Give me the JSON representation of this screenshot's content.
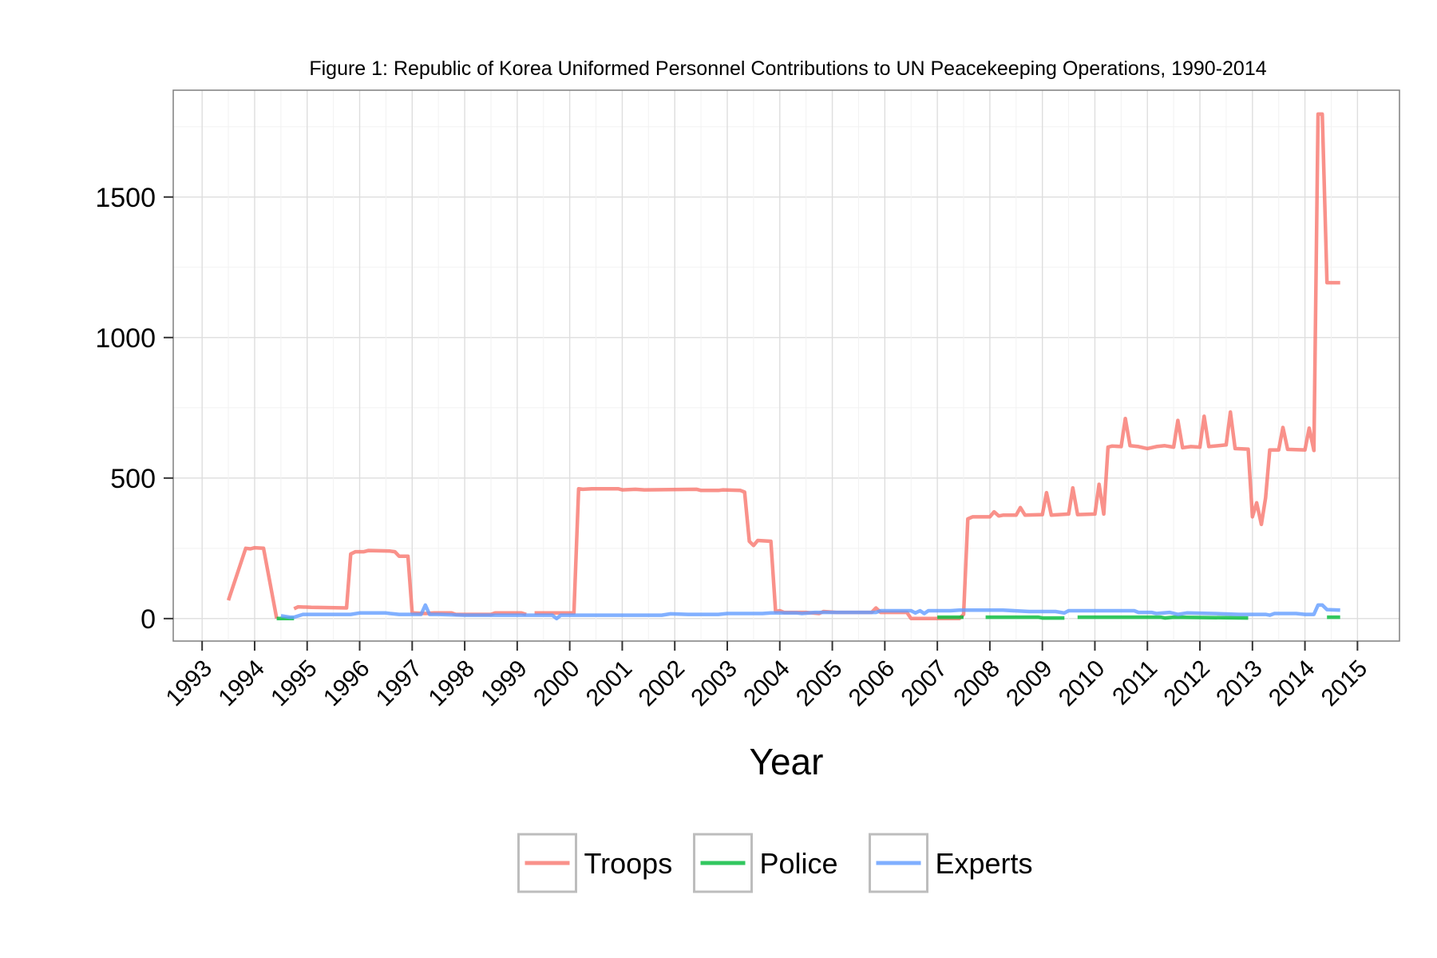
{
  "chart_data": {
    "type": "line",
    "title": "Figure 1: Republic of Korea Uniformed Personnel Contributions to UN Peacekeeping Operations, 1990-2014",
    "xlabel": "Year",
    "ylabel": "",
    "xlim": [
      1992.45,
      2015.8
    ],
    "ylim": [
      -80,
      1880
    ],
    "x_ticks": [
      "1993",
      "1994",
      "1995",
      "1996",
      "1997",
      "1998",
      "1999",
      "2000",
      "2001",
      "2002",
      "2003",
      "2004",
      "2005",
      "2006",
      "2007",
      "2008",
      "2009",
      "2010",
      "2011",
      "2012",
      "2013",
      "2014",
      "2015"
    ],
    "y_ticks": [
      0,
      500,
      1000,
      1500
    ],
    "grid": true,
    "legend_position": "bottom",
    "series": [
      {
        "name": "Troops",
        "color": "#F8766D",
        "points": [
          [
            1993.5,
            65
          ],
          [
            1993.83,
            250
          ],
          [
            1993.92,
            248
          ],
          [
            1994.0,
            252
          ],
          [
            1994.17,
            250
          ],
          [
            1994.42,
            0
          ],
          null,
          [
            1994.75,
            35
          ],
          [
            1994.83,
            42
          ],
          [
            1995.08,
            40
          ],
          [
            1995.75,
            38
          ],
          [
            1995.83,
            230
          ],
          [
            1995.92,
            238
          ],
          [
            1996.08,
            238
          ],
          [
            1996.17,
            242
          ],
          [
            1996.58,
            240
          ],
          [
            1996.67,
            238
          ],
          [
            1996.75,
            222
          ],
          [
            1996.92,
            222
          ],
          [
            1997.0,
            20
          ],
          [
            1997.25,
            18
          ],
          [
            1997.42,
            20
          ],
          [
            1997.75,
            20
          ],
          [
            1997.83,
            15
          ],
          [
            1998.5,
            15
          ],
          [
            1998.58,
            20
          ],
          [
            1999.08,
            20
          ],
          [
            1999.17,
            15
          ],
          null,
          [
            1999.33,
            20
          ],
          [
            2000.08,
            20
          ],
          [
            2000.17,
            462
          ],
          [
            2000.25,
            460
          ],
          [
            2000.42,
            462
          ],
          [
            2000.92,
            462
          ],
          [
            2001.0,
            458
          ],
          [
            2001.25,
            460
          ],
          [
            2001.42,
            458
          ],
          [
            2002.42,
            460
          ],
          [
            2002.5,
            456
          ],
          [
            2002.83,
            456
          ],
          [
            2002.92,
            458
          ],
          [
            2003.25,
            456
          ],
          [
            2003.33,
            450
          ],
          [
            2003.42,
            275
          ],
          [
            2003.5,
            260
          ],
          [
            2003.58,
            278
          ],
          [
            2003.83,
            275
          ],
          [
            2003.92,
            25
          ],
          [
            2004.0,
            28
          ],
          [
            2004.08,
            22
          ],
          [
            2004.5,
            22
          ],
          [
            2004.75,
            18
          ],
          [
            2004.83,
            25
          ],
          [
            2005.08,
            22
          ],
          [
            2005.75,
            22
          ],
          [
            2005.83,
            38
          ],
          [
            2005.92,
            22
          ],
          [
            2006.42,
            22
          ],
          [
            2006.5,
            0
          ],
          [
            2007.42,
            0
          ],
          [
            2007.5,
            15
          ],
          [
            2007.58,
            355
          ],
          [
            2007.67,
            362
          ],
          [
            2008.0,
            362
          ],
          [
            2008.08,
            380
          ],
          [
            2008.17,
            365
          ],
          [
            2008.25,
            368
          ],
          [
            2008.5,
            368
          ],
          [
            2008.58,
            395
          ],
          [
            2008.67,
            368
          ],
          [
            2009.0,
            370
          ],
          [
            2009.08,
            448
          ],
          [
            2009.17,
            368
          ],
          [
            2009.5,
            372
          ],
          [
            2009.58,
            465
          ],
          [
            2009.67,
            370
          ],
          [
            2010.0,
            372
          ],
          [
            2010.08,
            478
          ],
          [
            2010.17,
            372
          ],
          [
            2010.25,
            610
          ],
          [
            2010.33,
            614
          ],
          [
            2010.5,
            612
          ],
          [
            2010.58,
            712
          ],
          [
            2010.67,
            615
          ],
          [
            2010.83,
            612
          ],
          [
            2011.0,
            605
          ],
          [
            2011.17,
            612
          ],
          [
            2011.33,
            615
          ],
          [
            2011.5,
            610
          ],
          [
            2011.58,
            705
          ],
          [
            2011.67,
            608
          ],
          [
            2011.83,
            612
          ],
          [
            2012.0,
            610
          ],
          [
            2012.08,
            720
          ],
          [
            2012.17,
            612
          ],
          [
            2012.5,
            618
          ],
          [
            2012.58,
            735
          ],
          [
            2012.67,
            605
          ],
          [
            2012.92,
            603
          ],
          [
            2013.0,
            362
          ],
          [
            2013.08,
            412
          ],
          [
            2013.17,
            335
          ],
          [
            2013.25,
            430
          ],
          [
            2013.33,
            600
          ],
          [
            2013.5,
            600
          ],
          [
            2013.58,
            680
          ],
          [
            2013.67,
            602
          ],
          [
            2014.0,
            600
          ],
          [
            2014.08,
            678
          ],
          [
            2014.17,
            598
          ],
          [
            2014.25,
            1795
          ],
          [
            2014.33,
            1795
          ],
          [
            2014.42,
            1195
          ],
          [
            2014.67,
            1195
          ]
        ]
      },
      {
        "name": "Police",
        "color": "#00BA38",
        "points": [
          [
            1994.42,
            0
          ],
          [
            1994.75,
            0
          ],
          null,
          [
            2007.0,
            5
          ],
          [
            2007.5,
            5
          ],
          null,
          [
            2007.92,
            5
          ],
          [
            2008.92,
            5
          ],
          [
            2009.0,
            2
          ],
          [
            2009.42,
            2
          ],
          null,
          [
            2009.67,
            5
          ],
          [
            2011.25,
            5
          ],
          [
            2011.33,
            2
          ],
          [
            2011.5,
            5
          ],
          [
            2012.92,
            2
          ],
          null,
          [
            2014.42,
            5
          ],
          [
            2014.67,
            5
          ]
        ]
      },
      {
        "name": "Experts",
        "color": "#619CFF",
        "points": [
          [
            1994.5,
            10
          ],
          [
            1994.67,
            5
          ],
          [
            1994.75,
            5
          ],
          [
            1994.92,
            15
          ],
          [
            1995.08,
            15
          ],
          [
            1995.83,
            15
          ],
          [
            1996.0,
            20
          ],
          [
            1996.5,
            20
          ],
          [
            1996.58,
            18
          ],
          [
            1996.75,
            15
          ],
          [
            1997.08,
            15
          ],
          [
            1997.17,
            15
          ],
          [
            1997.25,
            48
          ],
          [
            1997.33,
            15
          ],
          [
            1997.5,
            15
          ],
          [
            1998.0,
            12
          ],
          [
            1999.0,
            12
          ],
          [
            1999.67,
            12
          ],
          [
            1999.75,
            0
          ],
          [
            1999.83,
            12
          ],
          [
            2000.5,
            12
          ],
          [
            2001.0,
            12
          ],
          [
            2001.75,
            12
          ],
          [
            2001.92,
            17
          ],
          [
            2002.25,
            15
          ],
          [
            2002.83,
            15
          ],
          [
            2003.0,
            18
          ],
          [
            2003.67,
            18
          ],
          [
            2003.83,
            20
          ],
          [
            2004.0,
            20
          ],
          [
            2004.33,
            20
          ],
          [
            2004.42,
            18
          ],
          [
            2004.67,
            22
          ],
          [
            2005.0,
            22
          ],
          [
            2005.83,
            22
          ],
          [
            2005.92,
            28
          ],
          [
            2006.25,
            28
          ],
          [
            2006.5,
            28
          ],
          [
            2006.58,
            20
          ],
          [
            2006.67,
            28
          ],
          [
            2006.75,
            18
          ],
          [
            2006.83,
            28
          ],
          [
            2007.25,
            28
          ],
          [
            2007.42,
            30
          ],
          [
            2008.25,
            30
          ],
          [
            2008.75,
            25
          ],
          [
            2009.25,
            25
          ],
          [
            2009.42,
            20
          ],
          [
            2009.5,
            28
          ],
          [
            2010.0,
            28
          ],
          [
            2010.75,
            28
          ],
          [
            2010.83,
            22
          ],
          [
            2011.08,
            22
          ],
          [
            2011.17,
            18
          ],
          [
            2011.42,
            22
          ],
          [
            2011.58,
            15
          ],
          [
            2011.75,
            20
          ],
          [
            2012.25,
            18
          ],
          [
            2012.75,
            15
          ],
          [
            2013.0,
            15
          ],
          [
            2013.25,
            15
          ],
          [
            2013.33,
            12
          ],
          [
            2013.42,
            18
          ],
          [
            2013.83,
            18
          ],
          [
            2014.0,
            15
          ],
          [
            2014.17,
            15
          ],
          [
            2014.25,
            48
          ],
          [
            2014.33,
            48
          ],
          [
            2014.42,
            32
          ],
          [
            2014.67,
            30
          ]
        ]
      }
    ]
  }
}
